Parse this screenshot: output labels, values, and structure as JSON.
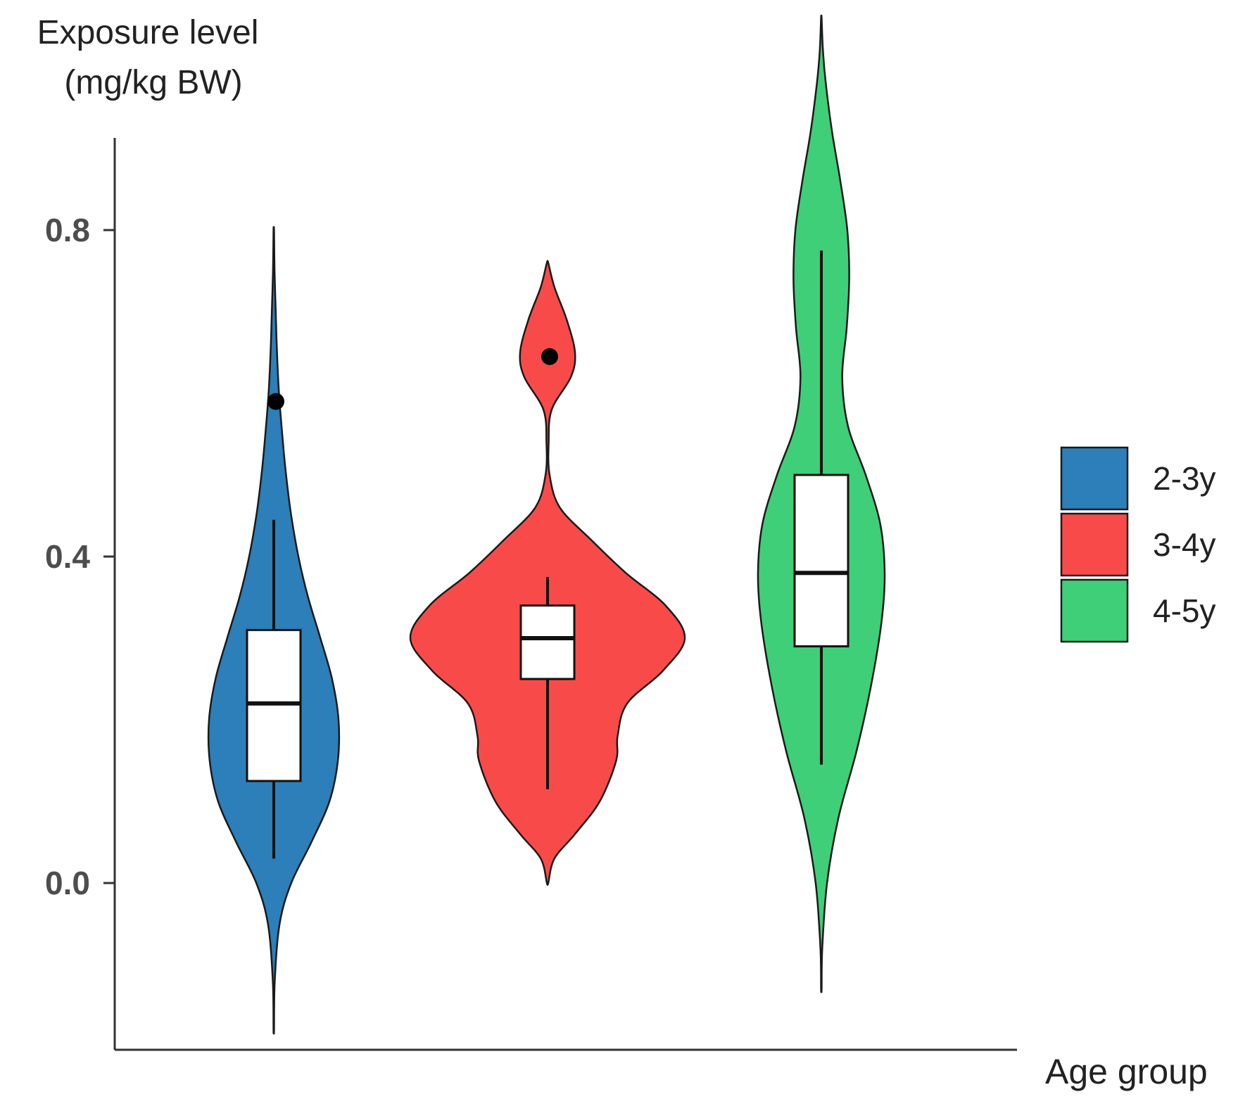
{
  "chart_data": {
    "type": "violin",
    "xlabel": "Age group",
    "ylabel_lines": [
      "Exposure level",
      "(mg/kg BW)"
    ],
    "ylim": [
      -0.2,
      0.92
    ],
    "yticks": [
      {
        "value": 0.0,
        "label": "0.0"
      },
      {
        "value": 0.4,
        "label": "0.4"
      },
      {
        "value": 0.8,
        "label": "0.8"
      }
    ],
    "legend_position": "right",
    "series": [
      {
        "name": "2-3y",
        "color": "#2c7fb8",
        "box": {
          "whisker_low": 0.03,
          "q1": 0.125,
          "median": 0.22,
          "q3": 0.31,
          "whisker_high": 0.445
        },
        "outliers": [
          0.59
        ],
        "violin_range": [
          -0.18,
          0.8
        ],
        "density": [
          [
            -0.18,
            0.004
          ],
          [
            -0.12,
            0.015
          ],
          [
            -0.05,
            0.09
          ],
          [
            0.0,
            0.27
          ],
          [
            0.05,
            0.58
          ],
          [
            0.1,
            0.86
          ],
          [
            0.15,
            0.99
          ],
          [
            0.2,
            1.0
          ],
          [
            0.25,
            0.9
          ],
          [
            0.3,
            0.72
          ],
          [
            0.35,
            0.53
          ],
          [
            0.4,
            0.38
          ],
          [
            0.45,
            0.27
          ],
          [
            0.5,
            0.19
          ],
          [
            0.55,
            0.13
          ],
          [
            0.6,
            0.08
          ],
          [
            0.65,
            0.05
          ],
          [
            0.7,
            0.03
          ],
          [
            0.75,
            0.012
          ],
          [
            0.8,
            0.004
          ]
        ]
      },
      {
        "name": "3-4y",
        "color": "#f94a4a",
        "box": {
          "whisker_low": 0.115,
          "q1": 0.25,
          "median": 0.3,
          "q3": 0.34,
          "whisker_high": 0.375
        },
        "outliers": [
          0.645
        ],
        "violin_range": [
          0.0,
          0.76
        ],
        "density": [
          [
            0.0,
            0.005
          ],
          [
            0.03,
            0.05
          ],
          [
            0.06,
            0.2
          ],
          [
            0.1,
            0.38
          ],
          [
            0.15,
            0.5
          ],
          [
            0.18,
            0.51
          ],
          [
            0.22,
            0.58
          ],
          [
            0.26,
            0.84
          ],
          [
            0.3,
            1.0
          ],
          [
            0.34,
            0.86
          ],
          [
            0.38,
            0.57
          ],
          [
            0.42,
            0.32
          ],
          [
            0.46,
            0.09
          ],
          [
            0.5,
            0.015
          ],
          [
            0.54,
            0.008
          ],
          [
            0.58,
            0.03
          ],
          [
            0.62,
            0.17
          ],
          [
            0.65,
            0.2
          ],
          [
            0.69,
            0.14
          ],
          [
            0.73,
            0.05
          ],
          [
            0.76,
            0.005
          ]
        ]
      },
      {
        "name": "4-5y",
        "color": "#3ecf78",
        "box": {
          "whisker_low": 0.145,
          "q1": 0.29,
          "median": 0.38,
          "q3": 0.5,
          "whisker_high": 0.775
        },
        "outliers": [],
        "violin_range": [
          -0.13,
          1.06
        ],
        "density": [
          [
            -0.13,
            0.004
          ],
          [
            -0.08,
            0.015
          ],
          [
            0.0,
            0.09
          ],
          [
            0.08,
            0.27
          ],
          [
            0.16,
            0.55
          ],
          [
            0.24,
            0.78
          ],
          [
            0.32,
            0.95
          ],
          [
            0.38,
            1.0
          ],
          [
            0.44,
            0.93
          ],
          [
            0.5,
            0.7
          ],
          [
            0.56,
            0.42
          ],
          [
            0.62,
            0.33
          ],
          [
            0.68,
            0.4
          ],
          [
            0.74,
            0.44
          ],
          [
            0.8,
            0.41
          ],
          [
            0.86,
            0.3
          ],
          [
            0.92,
            0.17
          ],
          [
            0.98,
            0.07
          ],
          [
            1.02,
            0.025
          ],
          [
            1.06,
            0.004
          ]
        ]
      }
    ]
  }
}
